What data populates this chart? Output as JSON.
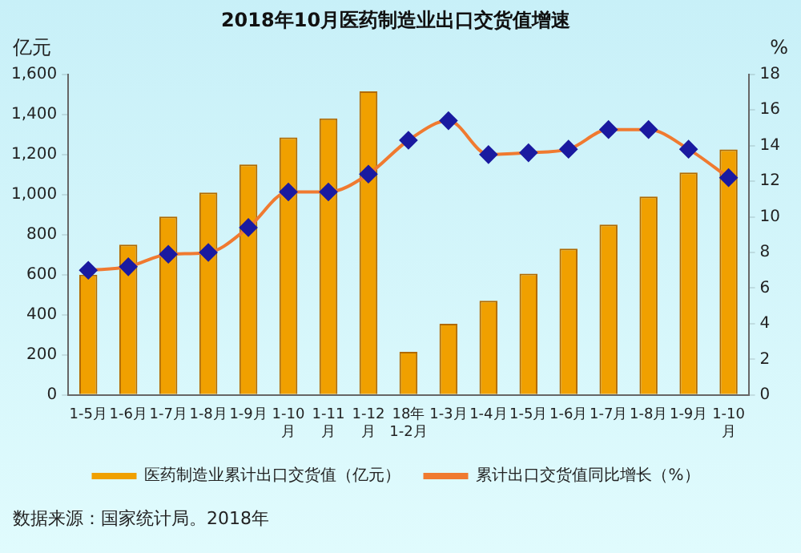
{
  "chart_data": {
    "type": "bar",
    "title": "2018年10月医药制造业出口交货值增速",
    "categories": [
      "1-5月",
      "1-6月",
      "1-7月",
      "1-8月",
      "1-9月",
      "1-10\n月",
      "1-11\n月",
      "1-12\n月",
      "18年\n1-2月",
      "1-3月",
      "1-4月",
      "1-5月",
      "1-6月",
      "1-7月",
      "1-8月",
      "1-9月",
      "1-10\n月"
    ],
    "series": [
      {
        "name": "医药制造业累计出口交货值（亿元）",
        "color": "#f0a000",
        "values": [
          600,
          750,
          890,
          1010,
          1150,
          1285,
          1380,
          1515,
          215,
          355,
          470,
          605,
          730,
          850,
          990,
          1110,
          1225
        ]
      },
      {
        "name": "累计出口交货值同比增长（%）",
        "type": "line",
        "axis": "y2",
        "color": "#f07a30",
        "marker": "diamond",
        "values": [
          7.0,
          7.2,
          7.9,
          8.0,
          9.4,
          11.4,
          11.4,
          12.4,
          14.3,
          15.4,
          13.5,
          13.6,
          13.8,
          14.9,
          14.9,
          13.8,
          12.2
        ]
      }
    ],
    "ylabel": "亿元",
    "y2label": "%",
    "ylim": [
      0,
      1600
    ],
    "yticks": [
      0,
      200,
      400,
      600,
      800,
      {
        "value": 1000,
        "label": "1,000"
      },
      {
        "value": 1200,
        "label": "1,200"
      },
      {
        "value": 1400,
        "label": "1,400"
      },
      {
        "value": 1600,
        "label": "1,600"
      }
    ],
    "y2lim": [
      0,
      18
    ],
    "y2ticks": [
      0,
      2,
      4,
      6,
      8,
      10,
      12,
      14,
      16,
      18
    ],
    "grid": false,
    "legend": "bottom",
    "annotations": [
      "数据来源：国家统计局。2018年"
    ]
  }
}
